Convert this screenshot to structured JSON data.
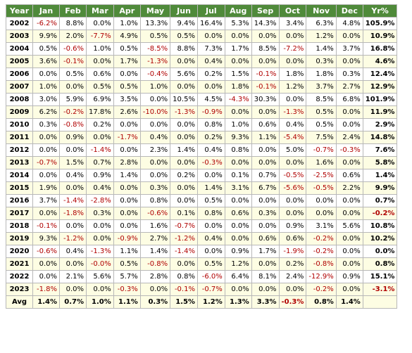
{
  "headers": [
    "Year",
    "Jan",
    "Feb",
    "Mar",
    "Apr",
    "May",
    "Jun",
    "Jul",
    "Aug",
    "Sep",
    "Oct",
    "Nov",
    "Dec",
    "Yr%"
  ],
  "rows": [
    {
      "year": "2002",
      "cells": [
        "-6.2%",
        "8.8%",
        "0.0%",
        "1.0%",
        "13.3%",
        "9.4%",
        "16.4%",
        "5.3%",
        "14.3%",
        "3.4%",
        "6.3%",
        "4.8%",
        "105.9%"
      ]
    },
    {
      "year": "2003",
      "cells": [
        "9.9%",
        "2.0%",
        "-7.7%",
        "4.9%",
        "0.5%",
        "0.5%",
        "0.0%",
        "0.0%",
        "0.0%",
        "0.0%",
        "1.2%",
        "0.0%",
        "10.9%"
      ]
    },
    {
      "year": "2004",
      "cells": [
        "0.5%",
        "-0.6%",
        "1.0%",
        "0.5%",
        "-8.5%",
        "8.8%",
        "7.3%",
        "1.7%",
        "8.5%",
        "-7.2%",
        "1.4%",
        "3.7%",
        "16.8%"
      ]
    },
    {
      "year": "2005",
      "cells": [
        "3.6%",
        "-0.1%",
        "0.0%",
        "1.7%",
        "-1.3%",
        "0.0%",
        "0.4%",
        "0.0%",
        "0.0%",
        "0.0%",
        "0.3%",
        "0.0%",
        "4.6%"
      ]
    },
    {
      "year": "2006",
      "cells": [
        "0.0%",
        "0.5%",
        "0.6%",
        "0.0%",
        "-0.4%",
        "5.6%",
        "0.2%",
        "1.5%",
        "-0.1%",
        "1.8%",
        "1.8%",
        "0.3%",
        "12.4%"
      ]
    },
    {
      "year": "2007",
      "cells": [
        "1.0%",
        "0.0%",
        "0.5%",
        "0.5%",
        "1.0%",
        "0.0%",
        "0.0%",
        "1.8%",
        "-0.1%",
        "1.2%",
        "3.7%",
        "2.7%",
        "12.9%"
      ]
    },
    {
      "year": "2008",
      "cells": [
        "3.0%",
        "5.9%",
        "6.9%",
        "3.5%",
        "0.0%",
        "10.5%",
        "4.5%",
        "-4.3%",
        "30.3%",
        "0.0%",
        "8.5%",
        "6.8%",
        "101.9%"
      ]
    },
    {
      "year": "2009",
      "cells": [
        "6.2%",
        "-0.2%",
        "17.8%",
        "2.6%",
        "-10.0%",
        "-1.3%",
        "-0.9%",
        "0.0%",
        "0.0%",
        "-1.3%",
        "0.5%",
        "0.0%",
        "11.9%"
      ]
    },
    {
      "year": "2010",
      "cells": [
        "0.3%",
        "-0.8%",
        "0.2%",
        "0.0%",
        "0.0%",
        "0.0%",
        "0.8%",
        "1.0%",
        "0.6%",
        "0.4%",
        "0.5%",
        "0.0%",
        "2.9%"
      ]
    },
    {
      "year": "2011",
      "cells": [
        "0.0%",
        "0.9%",
        "0.0%",
        "-1.7%",
        "0.4%",
        "0.0%",
        "0.2%",
        "9.3%",
        "1.1%",
        "-5.4%",
        "7.5%",
        "2.4%",
        "14.8%"
      ]
    },
    {
      "year": "2012",
      "cells": [
        "0.0%",
        "0.0%",
        "-1.4%",
        "0.0%",
        "2.3%",
        "1.4%",
        "0.4%",
        "0.8%",
        "0.0%",
        "5.0%",
        "-0.7%",
        "-0.3%",
        "7.6%"
      ]
    },
    {
      "year": "2013",
      "cells": [
        "-0.7%",
        "1.5%",
        "0.7%",
        "2.8%",
        "0.0%",
        "0.0%",
        "-0.3%",
        "0.0%",
        "0.0%",
        "0.0%",
        "1.6%",
        "0.0%",
        "5.8%"
      ]
    },
    {
      "year": "2014",
      "cells": [
        "0.0%",
        "0.4%",
        "0.9%",
        "1.4%",
        "0.0%",
        "0.2%",
        "0.0%",
        "0.1%",
        "0.7%",
        "-0.5%",
        "-2.5%",
        "0.6%",
        "1.4%"
      ]
    },
    {
      "year": "2015",
      "cells": [
        "1.9%",
        "0.0%",
        "0.4%",
        "0.0%",
        "0.3%",
        "0.0%",
        "1.4%",
        "3.1%",
        "6.7%",
        "-5.6%",
        "-0.5%",
        "2.2%",
        "9.9%"
      ]
    },
    {
      "year": "2016",
      "cells": [
        "3.7%",
        "-1.4%",
        "-2.8%",
        "0.0%",
        "0.8%",
        "0.0%",
        "0.5%",
        "0.0%",
        "0.0%",
        "0.0%",
        "0.0%",
        "0.0%",
        "0.7%"
      ]
    },
    {
      "year": "2017",
      "cells": [
        "0.0%",
        "-1.8%",
        "0.3%",
        "0.0%",
        "-0.6%",
        "0.1%",
        "0.8%",
        "0.6%",
        "0.3%",
        "0.0%",
        "0.0%",
        "0.0%",
        "-0.2%"
      ]
    },
    {
      "year": "2018",
      "cells": [
        "-0.1%",
        "0.0%",
        "0.0%",
        "0.0%",
        "1.6%",
        "-0.7%",
        "0.0%",
        "0.0%",
        "0.0%",
        "0.9%",
        "3.1%",
        "5.6%",
        "10.8%"
      ]
    },
    {
      "year": "2019",
      "cells": [
        "9.3%",
        "-1.2%",
        "0.0%",
        "-0.9%",
        "2.7%",
        "-1.2%",
        "0.4%",
        "0.0%",
        "0.6%",
        "0.6%",
        "-0.2%",
        "0.0%",
        "10.2%"
      ]
    },
    {
      "year": "2020",
      "cells": [
        "-0.6%",
        "0.4%",
        "-1.3%",
        "1.1%",
        "1.4%",
        "-1.4%",
        "0.0%",
        "0.9%",
        "1.7%",
        "-1.9%",
        "-0.2%",
        "0.0%",
        "0.0%"
      ]
    },
    {
      "year": "2021",
      "cells": [
        "0.0%",
        "0.0%",
        "-0.0%",
        "0.5%",
        "-0.8%",
        "0.0%",
        "0.5%",
        "1.2%",
        "0.0%",
        "0.2%",
        "-0.8%",
        "0.0%",
        "0.8%"
      ]
    },
    {
      "year": "2022",
      "cells": [
        "0.0%",
        "2.1%",
        "5.6%",
        "5.7%",
        "2.8%",
        "0.8%",
        "-6.0%",
        "6.4%",
        "8.1%",
        "2.4%",
        "-12.9%",
        "0.9%",
        "15.1%"
      ]
    },
    {
      "year": "2023",
      "cells": [
        "-1.8%",
        "0.0%",
        "0.0%",
        "-0.3%",
        "0.0%",
        "-0.1%",
        "-0.7%",
        "0.0%",
        "0.0%",
        "0.0%",
        "-0.2%",
        "0.0%",
        "-3.1%"
      ]
    }
  ],
  "avg": {
    "year": "Avg",
    "cells": [
      "1.4%",
      "0.7%",
      "1.0%",
      "1.1%",
      "0.3%",
      "1.5%",
      "1.2%",
      "1.3%",
      "3.3%",
      "-0.3%",
      "0.8%",
      "1.4%",
      ""
    ]
  },
  "colors": {
    "header_bg": "#4f8a3a",
    "header_text": "#ffffff",
    "negative": "#b00000",
    "alt_row": "#fdfde3",
    "border": "#b8b8b8"
  }
}
